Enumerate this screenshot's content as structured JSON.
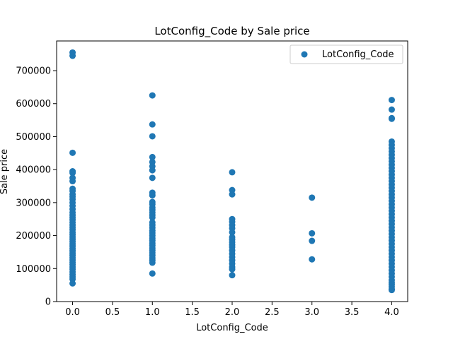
{
  "chart_data": {
    "type": "scatter",
    "title": "LotConfig_Code by Sale price",
    "xlabel": "LotConfig_Code",
    "ylabel": "Sale price",
    "xlim": [
      -0.2,
      4.2
    ],
    "ylim": [
      0,
      790000
    ],
    "x_ticks": [
      0.0,
      0.5,
      1.0,
      1.5,
      2.0,
      2.5,
      3.0,
      3.5,
      4.0
    ],
    "x_tick_labels": [
      "0.0",
      "0.5",
      "1.0",
      "1.5",
      "2.0",
      "2.5",
      "3.0",
      "3.5",
      "4.0"
    ],
    "y_ticks": [
      0,
      100000,
      200000,
      300000,
      400000,
      500000,
      600000,
      700000
    ],
    "y_tick_labels": [
      "0",
      "100000",
      "200000",
      "300000",
      "400000",
      "500000",
      "600000",
      "700000"
    ],
    "grid": false,
    "legend_position": "top-right",
    "series": [
      {
        "name": "LotConfig_Code",
        "color": "#1f77b4",
        "points": [
          [
            0,
            755000
          ],
          [
            0,
            745000
          ],
          [
            0,
            451000
          ],
          [
            0,
            395000
          ],
          [
            0,
            390000
          ],
          [
            0,
            375000
          ],
          [
            0,
            365000
          ],
          [
            0,
            342000
          ],
          [
            0,
            335000
          ],
          [
            0,
            325000
          ],
          [
            0,
            318000
          ],
          [
            0,
            310000
          ],
          [
            0,
            300000
          ],
          [
            0,
            290000
          ],
          [
            0,
            280000
          ],
          [
            0,
            270000
          ],
          [
            0,
            262000
          ],
          [
            0,
            255000
          ],
          [
            0,
            248000
          ],
          [
            0,
            240000
          ],
          [
            0,
            232000
          ],
          [
            0,
            225000
          ],
          [
            0,
            218000
          ],
          [
            0,
            210000
          ],
          [
            0,
            203000
          ],
          [
            0,
            196000
          ],
          [
            0,
            189000
          ],
          [
            0,
            182000
          ],
          [
            0,
            175000
          ],
          [
            0,
            168000
          ],
          [
            0,
            161000
          ],
          [
            0,
            154000
          ],
          [
            0,
            147000
          ],
          [
            0,
            140000
          ],
          [
            0,
            133000
          ],
          [
            0,
            126000
          ],
          [
            0,
            119000
          ],
          [
            0,
            112000
          ],
          [
            0,
            105000
          ],
          [
            0,
            98000
          ],
          [
            0,
            90000
          ],
          [
            0,
            82000
          ],
          [
            0,
            75000
          ],
          [
            0,
            68000
          ],
          [
            0,
            55000
          ],
          [
            1,
            625000
          ],
          [
            1,
            537000
          ],
          [
            1,
            501000
          ],
          [
            1,
            438000
          ],
          [
            1,
            423000
          ],
          [
            1,
            410000
          ],
          [
            1,
            398000
          ],
          [
            1,
            375000
          ],
          [
            1,
            330000
          ],
          [
            1,
            322000
          ],
          [
            1,
            302000
          ],
          [
            1,
            295000
          ],
          [
            1,
            285000
          ],
          [
            1,
            278000
          ],
          [
            1,
            270000
          ],
          [
            1,
            262000
          ],
          [
            1,
            255000
          ],
          [
            1,
            240000
          ],
          [
            1,
            232000
          ],
          [
            1,
            224000
          ],
          [
            1,
            215000
          ],
          [
            1,
            208000
          ],
          [
            1,
            200000
          ],
          [
            1,
            192000
          ],
          [
            1,
            185000
          ],
          [
            1,
            177000
          ],
          [
            1,
            170000
          ],
          [
            1,
            162000
          ],
          [
            1,
            155000
          ],
          [
            1,
            148000
          ],
          [
            1,
            140000
          ],
          [
            1,
            132000
          ],
          [
            1,
            125000
          ],
          [
            1,
            118000
          ],
          [
            1,
            85000
          ],
          [
            2,
            392000
          ],
          [
            2,
            338000
          ],
          [
            2,
            325000
          ],
          [
            2,
            250000
          ],
          [
            2,
            242000
          ],
          [
            2,
            232000
          ],
          [
            2,
            222000
          ],
          [
            2,
            210000
          ],
          [
            2,
            195000
          ],
          [
            2,
            188000
          ],
          [
            2,
            180000
          ],
          [
            2,
            172000
          ],
          [
            2,
            165000
          ],
          [
            2,
            155000
          ],
          [
            2,
            145000
          ],
          [
            2,
            135000
          ],
          [
            2,
            125000
          ],
          [
            2,
            115000
          ],
          [
            2,
            105000
          ],
          [
            2,
            98000
          ],
          [
            2,
            80000
          ],
          [
            3,
            315000
          ],
          [
            3,
            207000
          ],
          [
            3,
            184000
          ],
          [
            3,
            128000
          ],
          [
            4,
            611000
          ],
          [
            4,
            582000
          ],
          [
            4,
            556000
          ],
          [
            4,
            554000
          ],
          [
            4,
            485000
          ],
          [
            4,
            475000
          ],
          [
            4,
            465000
          ],
          [
            4,
            455000
          ],
          [
            4,
            445000
          ],
          [
            4,
            435000
          ],
          [
            4,
            425000
          ],
          [
            4,
            415000
          ],
          [
            4,
            405000
          ],
          [
            4,
            395000
          ],
          [
            4,
            385000
          ],
          [
            4,
            375000
          ],
          [
            4,
            365000
          ],
          [
            4,
            355000
          ],
          [
            4,
            345000
          ],
          [
            4,
            335000
          ],
          [
            4,
            325000
          ],
          [
            4,
            315000
          ],
          [
            4,
            305000
          ],
          [
            4,
            295000
          ],
          [
            4,
            285000
          ],
          [
            4,
            275000
          ],
          [
            4,
            265000
          ],
          [
            4,
            255000
          ],
          [
            4,
            245000
          ],
          [
            4,
            235000
          ],
          [
            4,
            225000
          ],
          [
            4,
            215000
          ],
          [
            4,
            205000
          ],
          [
            4,
            195000
          ],
          [
            4,
            185000
          ],
          [
            4,
            175000
          ],
          [
            4,
            165000
          ],
          [
            4,
            155000
          ],
          [
            4,
            145000
          ],
          [
            4,
            135000
          ],
          [
            4,
            125000
          ],
          [
            4,
            115000
          ],
          [
            4,
            105000
          ],
          [
            4,
            95000
          ],
          [
            4,
            85000
          ],
          [
            4,
            75000
          ],
          [
            4,
            65000
          ],
          [
            4,
            58000
          ],
          [
            4,
            52000
          ],
          [
            4,
            45000
          ],
          [
            4,
            38000
          ],
          [
            4,
            35000
          ]
        ]
      }
    ]
  }
}
